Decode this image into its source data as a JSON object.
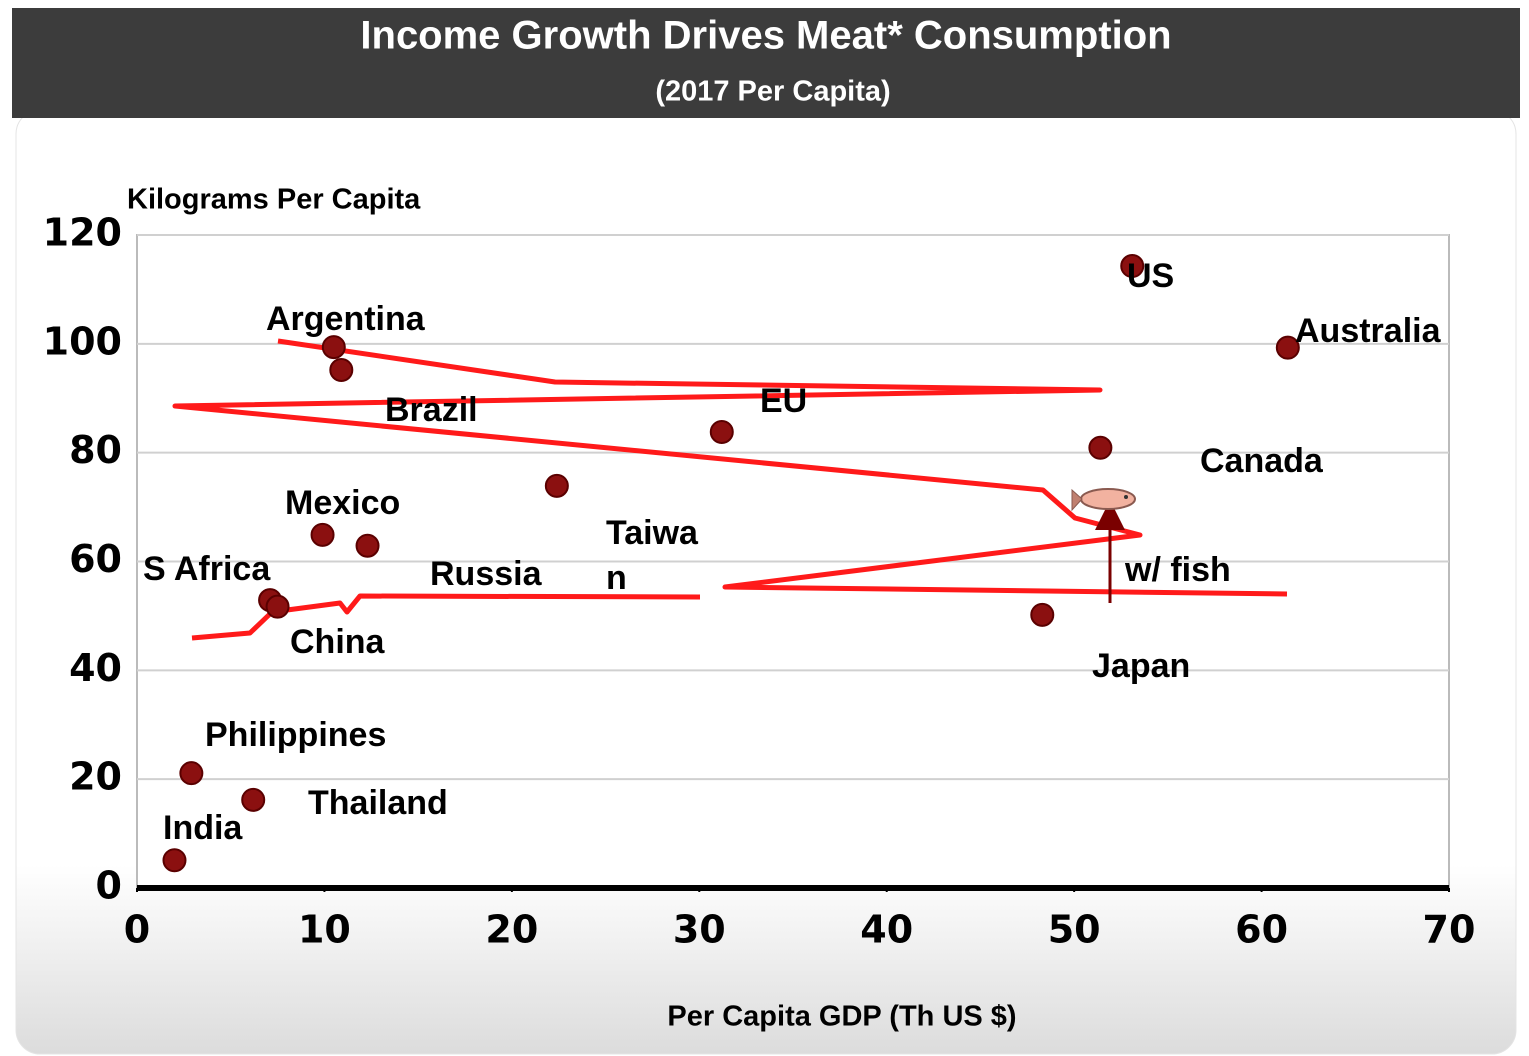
{
  "chart_data": {
    "type": "scatter",
    "title": "Income Growth Drives Meat* Consumption",
    "subtitle": "(2017 Per Capita)",
    "y_label": "Kilograms Per Capita",
    "x_label": "Per Capita GDP (Th US $)",
    "color": "#8b1010",
    "grid": true,
    "xlim": [
      0,
      70
    ],
    "xticks": [
      0,
      10,
      20,
      30,
      40,
      50,
      60,
      70
    ],
    "ylim": [
      0,
      120
    ],
    "yticks": [
      0,
      20,
      40,
      60,
      80,
      100,
      120
    ],
    "x": [
      53.1,
      61.4,
      10.5,
      10.9,
      31.2,
      51.4,
      22.4,
      9.9,
      12.3,
      7.1,
      7.5,
      48.3,
      2.9,
      6.2,
      2.0
    ],
    "values": [
      114.3,
      99.3,
      99.4,
      95.2,
      83.8,
      80.9,
      73.9,
      64.9,
      62.9,
      52.9,
      51.7,
      50.2,
      21.1,
      16.2,
      5.1
    ],
    "annotations": [
      "US",
      "Australia",
      "Argentina",
      "Brazil",
      "EU",
      "Canada",
      "Mexico",
      "Taiwa",
      "n",
      "S Africa",
      "Russia",
      "China",
      "w/ fish",
      "Japan",
      "Philippines",
      "Thailand",
      "India"
    ]
  }
}
